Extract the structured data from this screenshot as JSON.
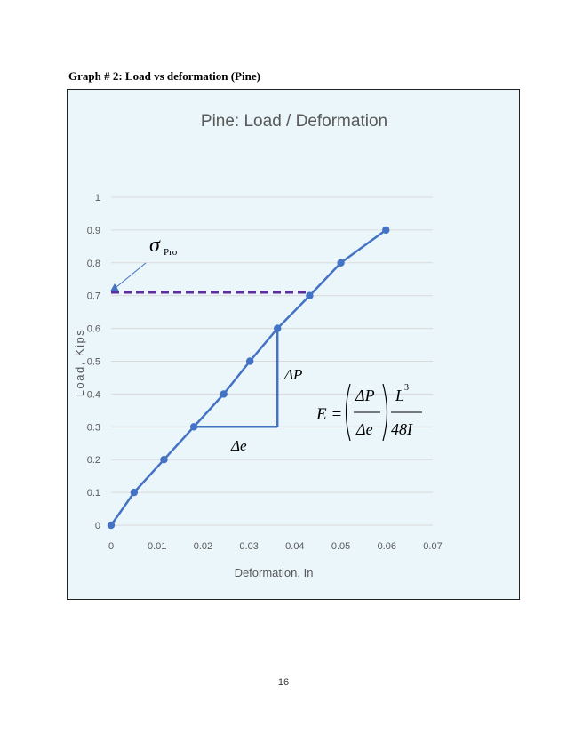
{
  "caption": "Graph # 2: Load vs deformation (Pine)",
  "page_number": "16",
  "colors": {
    "series": "#4472c4",
    "prop_line": "#5b2f9e",
    "grid": "#d9d9d9",
    "background": "#eaf6f9",
    "text": "#595959"
  },
  "chart_data": {
    "type": "line",
    "title": "Pine: Load / Deformation",
    "xlabel": "Deformation, In",
    "ylabel": "Load, Kips",
    "xlim": [
      0,
      0.07
    ],
    "ylim": [
      0,
      1
    ],
    "x_ticks": [
      "0",
      "0.01",
      "0.02",
      "0.03",
      "0.04",
      "0.05",
      "0.06",
      "0.07"
    ],
    "y_ticks": [
      "0",
      "0.1",
      "0.2",
      "0.3",
      "0.4",
      "0.5",
      "0.6",
      "0.7",
      "0.8",
      "0.9",
      "1"
    ],
    "grid": "horizontal",
    "series": [
      {
        "x": [
          0,
          0.005,
          0.0115,
          0.018,
          0.0245,
          0.0302,
          0.0362,
          0.0432,
          0.05,
          0.0598
        ],
        "y": [
          0,
          0.1,
          0.2,
          0.3,
          0.4,
          0.5,
          0.6,
          0.7,
          0.8,
          0.9
        ]
      }
    ],
    "proportional_limit": {
      "y": 0.71,
      "x_end": 0.0432
    },
    "slope_triangle": {
      "x0": 0.018,
      "x1": 0.0362,
      "y0": 0.3,
      "y1": 0.6
    },
    "annotations": {
      "sigma": "σ",
      "sigma_sub": "Pro",
      "delta_p": "ΔP",
      "delta_e": "Δe",
      "formula_lhs": "E =",
      "formula_num": "ΔP",
      "formula_den": "Δe",
      "formula_L": "L",
      "formula_exp": "3",
      "formula_den2": "48I"
    }
  }
}
